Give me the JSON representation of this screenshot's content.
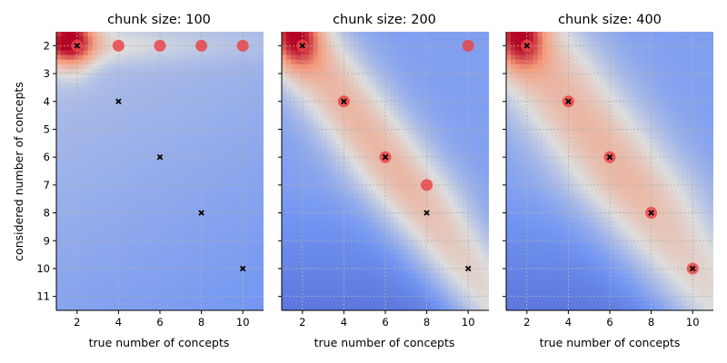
{
  "chart_data": [
    {
      "type": "heatmap",
      "title": "chunk size: 100",
      "xlabel": "true number of concepts",
      "ylabel": "considered number of concepts",
      "xlim": [
        1,
        11
      ],
      "ylim": [
        11.5,
        1.5
      ],
      "xticks": [
        "2",
        "4",
        "6",
        "8",
        "10"
      ],
      "yticks": [
        "2",
        "3",
        "4",
        "5",
        "6",
        "7",
        "8",
        "9",
        "10",
        "11"
      ],
      "colormap": "coolwarm",
      "grid": true,
      "true_points": [
        [
          2,
          2
        ],
        [
          4,
          4
        ],
        [
          6,
          6
        ],
        [
          8,
          8
        ],
        [
          10,
          10
        ]
      ],
      "selected_points": [
        [
          2,
          2
        ],
        [
          4,
          2
        ],
        [
          6,
          2
        ],
        [
          8,
          2
        ],
        [
          10,
          2
        ]
      ]
    },
    {
      "type": "heatmap",
      "title": "chunk size: 200",
      "xlabel": "true number of concepts",
      "ylabel": "",
      "xlim": [
        1,
        11
      ],
      "ylim": [
        11.5,
        1.5
      ],
      "xticks": [
        "2",
        "4",
        "6",
        "8",
        "10"
      ],
      "yticks": [],
      "colormap": "coolwarm",
      "grid": true,
      "true_points": [
        [
          2,
          2
        ],
        [
          4,
          4
        ],
        [
          6,
          6
        ],
        [
          8,
          8
        ],
        [
          10,
          10
        ]
      ],
      "selected_points": [
        [
          2,
          2
        ],
        [
          4,
          4
        ],
        [
          6,
          6
        ],
        [
          8,
          7
        ],
        [
          10,
          2
        ]
      ]
    },
    {
      "type": "heatmap",
      "title": "chunk size: 400",
      "xlabel": "true number of concepts",
      "ylabel": "",
      "xlim": [
        1,
        11
      ],
      "ylim": [
        11.5,
        1.5
      ],
      "xticks": [
        "2",
        "4",
        "6",
        "8",
        "10"
      ],
      "yticks": [],
      "colormap": "coolwarm",
      "grid": true,
      "true_points": [
        [
          2,
          2
        ],
        [
          4,
          4
        ],
        [
          6,
          6
        ],
        [
          8,
          8
        ],
        [
          10,
          10
        ]
      ],
      "selected_points": [
        [
          2,
          2
        ],
        [
          4,
          4
        ],
        [
          6,
          6
        ],
        [
          8,
          8
        ],
        [
          10,
          10
        ]
      ]
    }
  ],
  "colors": {
    "selected_marker": "#e8474a",
    "true_marker": "#000000",
    "grid": "#b0b0b0",
    "cold": "#3b4cc0",
    "hot": "#b40426"
  }
}
